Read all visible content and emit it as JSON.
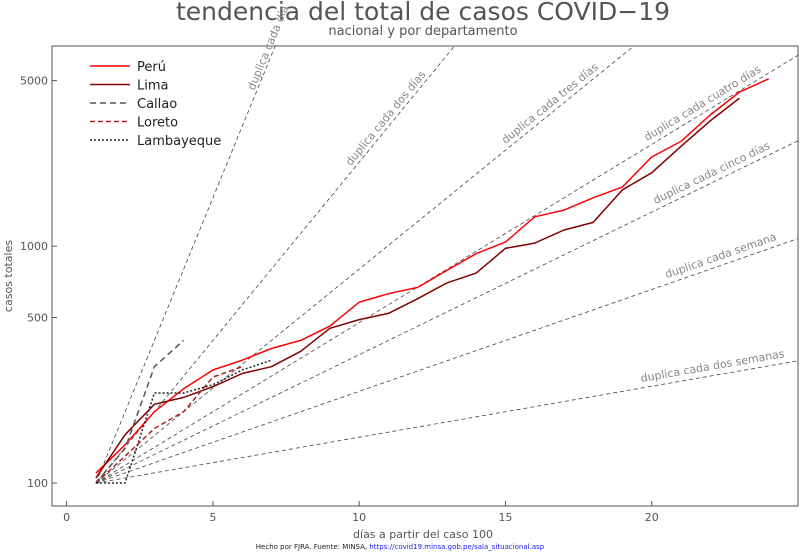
{
  "chart_data": {
    "type": "line",
    "title": "tendencia del total de casos COVID−19",
    "subtitle": "nacional y por departamento",
    "xlabel": "días a partir del caso 100",
    "ylabel": "casos totales",
    "xlim": [
      -0.5,
      25
    ],
    "ylim": [
      80,
      7000
    ],
    "yscale": "log",
    "xticks": [
      0,
      5,
      10,
      15,
      20
    ],
    "yticks": [
      100,
      500,
      1000,
      5000
    ],
    "grid": false,
    "legend_position": "top-left",
    "series": [
      {
        "name": "Perú",
        "color": "#ff0000",
        "dash": "",
        "x": [
          1,
          2,
          3,
          4,
          5,
          6,
          7,
          8,
          9,
          10,
          11,
          12,
          13,
          14,
          15,
          16,
          17,
          18,
          19,
          20,
          21,
          22,
          23,
          24
        ],
        "y": [
          110,
          145,
          200,
          250,
          300,
          330,
          370,
          400,
          460,
          580,
          630,
          670,
          790,
          930,
          1040,
          1330,
          1420,
          1600,
          1780,
          2380,
          2770,
          3580,
          4470,
          5090
        ]
      },
      {
        "name": "Lima",
        "color": "#800000",
        "dash": "",
        "x": [
          1,
          2,
          3,
          4,
          5,
          6,
          7,
          8,
          9,
          10,
          11,
          12,
          13,
          14,
          15,
          16,
          17,
          18,
          19,
          20,
          21,
          22,
          23
        ],
        "y": [
          105,
          160,
          215,
          230,
          255,
          290,
          310,
          360,
          450,
          490,
          520,
          600,
          700,
          770,
          980,
          1030,
          1170,
          1260,
          1730,
          2040,
          2640,
          3380,
          4220
        ]
      },
      {
        "name": "Callao",
        "color": "#555555",
        "dash": "6,4",
        "x": [
          1,
          2,
          3,
          4
        ],
        "y": [
          100,
          140,
          310,
          400
        ]
      },
      {
        "name": "Loreto",
        "color": "#b22222",
        "dash": "5,3",
        "x": [
          1,
          2,
          3,
          4,
          5,
          6
        ],
        "y": [
          100,
          130,
          170,
          200,
          280,
          310
        ]
      },
      {
        "name": "Lambayeque",
        "color": "#222222",
        "dash": "2,2",
        "x": [
          1,
          2,
          3,
          4,
          5,
          6,
          7
        ],
        "y": [
          100,
          100,
          240,
          240,
          260,
          300,
          330
        ]
      }
    ],
    "reference_lines": [
      {
        "label": "duplica cada día",
        "doubling_days": 1
      },
      {
        "label": "duplica cada dos días",
        "doubling_days": 2
      },
      {
        "label": "duplica cada tres días",
        "doubling_days": 3
      },
      {
        "label": "duplica cada cuatro días",
        "doubling_days": 4
      },
      {
        "label": "duplica cada cinco días",
        "doubling_days": 5
      },
      {
        "label": "duplica cada semana",
        "doubling_days": 7
      },
      {
        "label": "duplica cada dos semanas",
        "doubling_days": 14
      }
    ]
  },
  "footer": {
    "text": "Hecho por FJRA. Fuente: MINSA, ",
    "link": "https://covid19.minsa.gob.pe/sala_situacional.asp"
  }
}
